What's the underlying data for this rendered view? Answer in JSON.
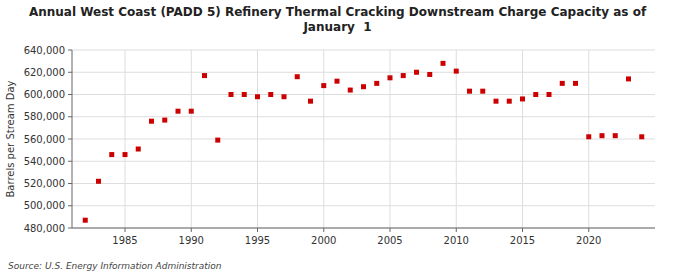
{
  "chart_data": {
    "type": "scatter",
    "title": "Annual West Coast (PADD 5) Refinery Thermal Cracking Downstream Charge Capacity as of\nJanuary  1",
    "y_label": "Barrels per Stream Day",
    "source": "Source: U.S. Energy Information Administration",
    "color": "#cc0000",
    "marker": "square",
    "x": [
      1982,
      1983,
      1984,
      1985,
      1986,
      1987,
      1988,
      1989,
      1990,
      1991,
      1992,
      1993,
      1994,
      1995,
      1996,
      1997,
      1998,
      1999,
      2000,
      2001,
      2002,
      2003,
      2004,
      2005,
      2006,
      2007,
      2008,
      2009,
      2010,
      2011,
      2012,
      2013,
      2014,
      2015,
      2016,
      2017,
      2018,
      2019,
      2020,
      2021,
      2022,
      2023,
      2024
    ],
    "values": [
      487000,
      522000,
      546000,
      546000,
      551000,
      576000,
      577000,
      585000,
      585000,
      617000,
      559000,
      600000,
      600000,
      598000,
      600000,
      598000,
      616000,
      594000,
      608000,
      612000,
      604000,
      607000,
      610000,
      615000,
      617000,
      620000,
      618000,
      628000,
      621000,
      603000,
      603000,
      594000,
      594000,
      596000,
      600000,
      600000,
      610000,
      610000,
      562000,
      563000,
      563000,
      614000,
      562000
    ],
    "xlim": [
      1981,
      2025
    ],
    "xticks": [
      1985,
      1990,
      1995,
      2000,
      2005,
      2010,
      2015,
      2020
    ],
    "ylim": [
      480000,
      640000
    ],
    "yticks": [
      {
        "value": 480000,
        "label": "480,000"
      },
      {
        "value": 500000,
        "label": "500,000"
      },
      {
        "value": 520000,
        "label": "520,000"
      },
      {
        "value": 540000,
        "label": "540,000"
      },
      {
        "value": 560000,
        "label": "560,000"
      },
      {
        "value": 580000,
        "label": "580,000"
      },
      {
        "value": 600000,
        "label": "600,000"
      },
      {
        "value": 620000,
        "label": "620,000"
      },
      {
        "value": 640000,
        "label": "640,000"
      }
    ],
    "grid": true
  }
}
